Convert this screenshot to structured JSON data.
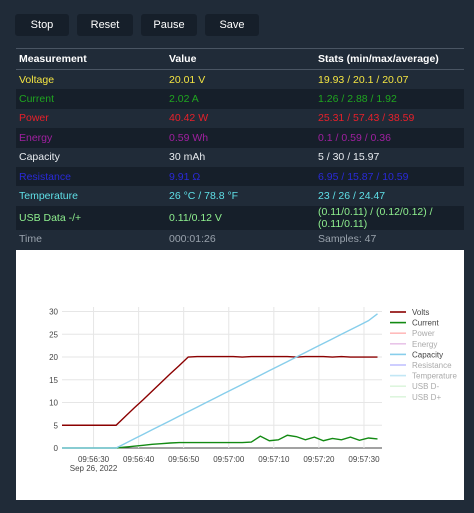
{
  "toolbar": {
    "buttons": [
      "Stop",
      "Reset",
      "Pause",
      "Save"
    ]
  },
  "table": {
    "header": [
      "Measurement",
      "Value",
      "Stats (min/max/average)"
    ],
    "rows": [
      {
        "cells": [
          "Voltage",
          "20.01 V",
          "19.93 / 20.1 / 20.07"
        ],
        "color": "#f4e542"
      },
      {
        "cells": [
          "Current",
          "2.02 A",
          "1.26 / 2.88 / 1.92"
        ],
        "color": "#1fa51f"
      },
      {
        "cells": [
          "Power",
          "40.42 W",
          "25.31 / 57.43 / 38.59"
        ],
        "color": "#e8202a"
      },
      {
        "cells": [
          "Energy",
          "0.59 Wh",
          "0.1 / 0.59 / 0.36"
        ],
        "color": "#a020a0"
      },
      {
        "cells": [
          "Capacity",
          "30 mAh",
          "5 / 30 / 15.97"
        ],
        "color": "#e8ecf0"
      },
      {
        "cells": [
          "Resistance",
          "9.91 Ω",
          "6.95 / 15.87 / 10.59"
        ],
        "color": "#2a2ad8"
      },
      {
        "cells": [
          "Temperature",
          "26 °C / 78.8 °F",
          "23 / 26 / 24.47"
        ],
        "color": "#5fe0e8"
      },
      {
        "cells": [
          "USB Data -/+",
          "0.11/0.12 V",
          "(0.11/0.11) / (0.12/0.12) / (0.11/0.11)"
        ],
        "color": "#8ff08f"
      },
      {
        "cells": [
          "Time",
          "000:01:26",
          "Samples: 47"
        ],
        "color": "#9aa3ad"
      }
    ]
  },
  "chart_data": {
    "type": "line",
    "x": [
      "09:56:23",
      "09:56:25",
      "09:56:27",
      "09:56:29",
      "09:56:31",
      "09:56:33",
      "09:56:35",
      "09:56:37",
      "09:56:39",
      "09:56:41",
      "09:56:43",
      "09:56:45",
      "09:56:47",
      "09:56:49",
      "09:56:51",
      "09:56:53",
      "09:56:55",
      "09:56:57",
      "09:56:59",
      "09:57:01",
      "09:57:03",
      "09:57:05",
      "09:57:07",
      "09:57:09",
      "09:57:11",
      "09:57:13",
      "09:57:15",
      "09:57:17",
      "09:57:19",
      "09:57:21",
      "09:57:23",
      "09:57:25",
      "09:57:27",
      "09:57:29",
      "09:57:31",
      "09:57:33"
    ],
    "date_label": "Sep 26, 2022",
    "xlim": [
      "09:56:23",
      "09:57:34"
    ],
    "xticks": [
      "09:56:30",
      "09:56:40",
      "09:56:50",
      "09:57:00",
      "09:57:10",
      "09:57:20",
      "09:57:30"
    ],
    "ylim": [
      0,
      31
    ],
    "yticks": [
      0,
      5,
      10,
      15,
      20,
      25,
      30
    ],
    "grid": true,
    "legend": "right",
    "series": [
      {
        "name": "Volts",
        "color": "#8b0000",
        "visible": true,
        "values": [
          5,
          5,
          5,
          5,
          5,
          5,
          5,
          6.9,
          8.8,
          10.6,
          12.5,
          14.4,
          16.3,
          18.1,
          20,
          20.1,
          20.1,
          20.1,
          20.1,
          20.1,
          20,
          20.1,
          20.1,
          20.1,
          20.1,
          20.1,
          20,
          20.1,
          20.1,
          20.1,
          20,
          20.1,
          20,
          20,
          20,
          20
        ]
      },
      {
        "name": "Current",
        "color": "#138a13",
        "visible": true,
        "values": [
          0,
          0,
          0,
          0,
          0,
          0,
          0,
          0.2,
          0.4,
          0.6,
          0.8,
          0.95,
          1.1,
          1.2,
          1.2,
          1.2,
          1.2,
          1.2,
          1.2,
          1.2,
          1.2,
          1.3,
          2.6,
          1.6,
          1.8,
          2.8,
          2.5,
          1.8,
          2.4,
          1.6,
          2.1,
          1.8,
          2.4,
          1.7,
          2.2,
          2.0
        ]
      },
      {
        "name": "Power",
        "color": "#ff8f8f",
        "visible": false
      },
      {
        "name": "Energy",
        "color": "#d9a0d9",
        "visible": false
      },
      {
        "name": "Capacity",
        "color": "#87ceeb",
        "visible": true,
        "values": [
          0,
          0,
          0,
          0,
          0,
          0,
          0,
          1,
          2,
          3,
          4,
          5,
          6,
          7,
          8,
          9,
          10,
          11,
          12,
          13,
          14,
          15,
          16,
          17,
          18,
          19,
          20,
          21,
          22,
          23,
          24,
          25,
          26,
          27,
          28,
          29.5
        ]
      },
      {
        "name": "Resistance",
        "color": "#9a9aff",
        "visible": false
      },
      {
        "name": "Temperature",
        "color": "#9ad8f0",
        "visible": false
      },
      {
        "name": "USB D-",
        "color": "#c8f0c8",
        "visible": false
      },
      {
        "name": "USB D+",
        "color": "#c8f0c8",
        "visible": false
      }
    ]
  }
}
